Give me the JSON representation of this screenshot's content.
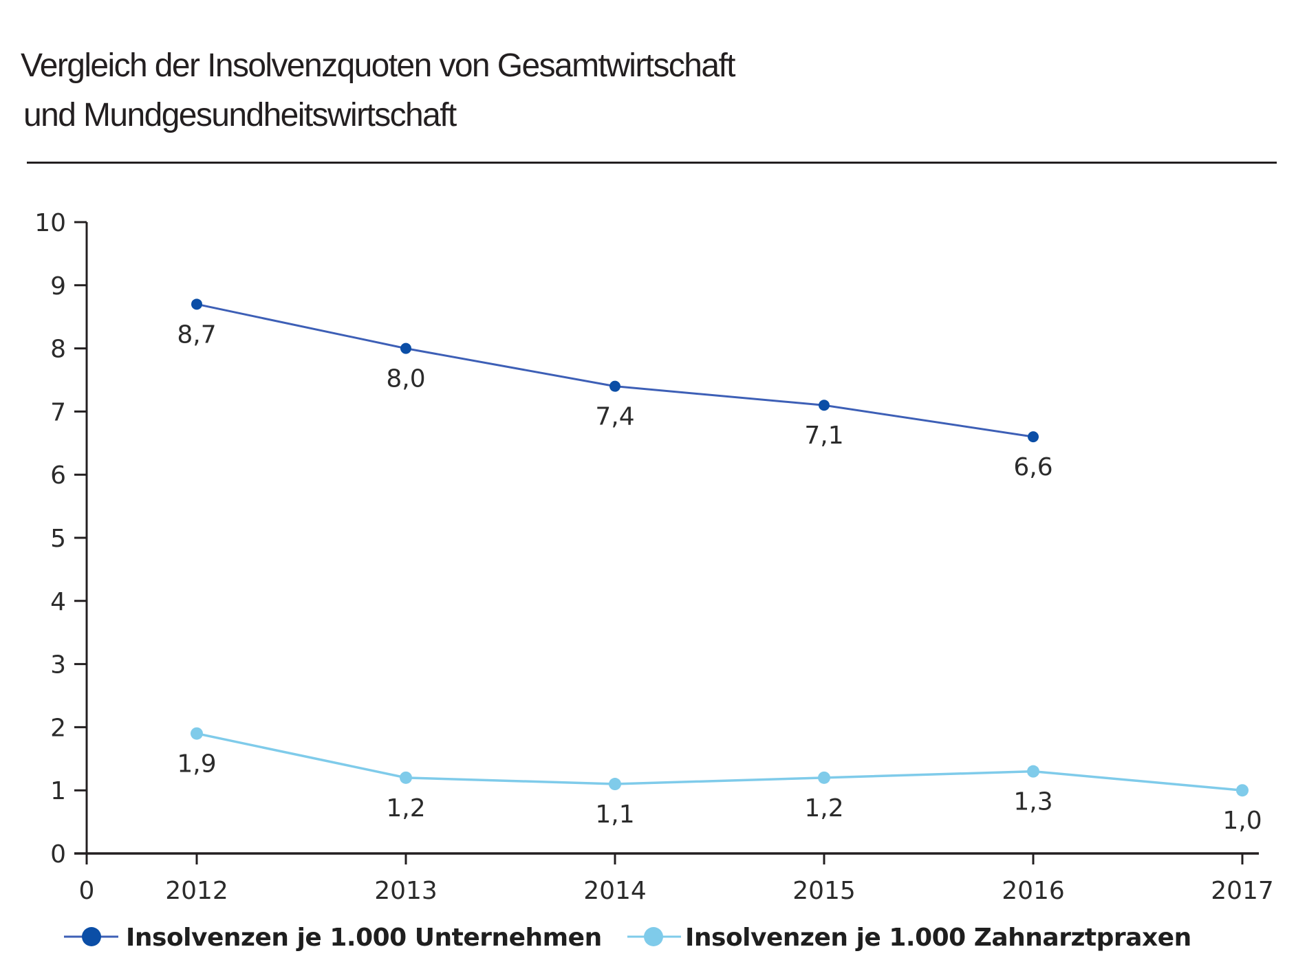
{
  "title": {
    "line1": "Vergleich der Insolvenzquoten von Gesamtwirtschaft",
    "line2": "und Mundgesundheitswirtschaft"
  },
  "colors": {
    "series_dark": "#0b4ea6",
    "series_dark_line": "#3d5fb6",
    "series_light": "#7fcbea",
    "axis": "#231f20"
  },
  "chart_data": {
    "type": "line",
    "title": "Vergleich der Insolvenzquoten von Gesamtwirtschaft und Mundgesundheitswirtschaft",
    "xlabel": "",
    "ylabel": "",
    "origin_label": "0",
    "categories": [
      "2012",
      "2013",
      "2014",
      "2015",
      "2016",
      "2017"
    ],
    "yticks": [
      0,
      1,
      2,
      3,
      4,
      5,
      6,
      7,
      8,
      9,
      10
    ],
    "ylim": [
      0,
      10
    ],
    "grid": false,
    "legend_position": "bottom",
    "series": [
      {
        "name": "Insolvenzen je 1.000 Unternehmen",
        "color": "#0b4ea6",
        "values": [
          8.7,
          8.0,
          7.4,
          7.1,
          6.6,
          null
        ],
        "labels": [
          "8,7",
          "8,0",
          "7,4",
          "7,1",
          "6,6",
          null
        ]
      },
      {
        "name": "Insolvenzen je 1.000 Zahnarztpraxen",
        "color": "#7fcbea",
        "values": [
          1.9,
          1.2,
          1.1,
          1.2,
          1.3,
          1.0
        ],
        "labels": [
          "1,9",
          "1,2",
          "1,1",
          "1,2",
          "1,3",
          "1,0"
        ]
      }
    ]
  }
}
